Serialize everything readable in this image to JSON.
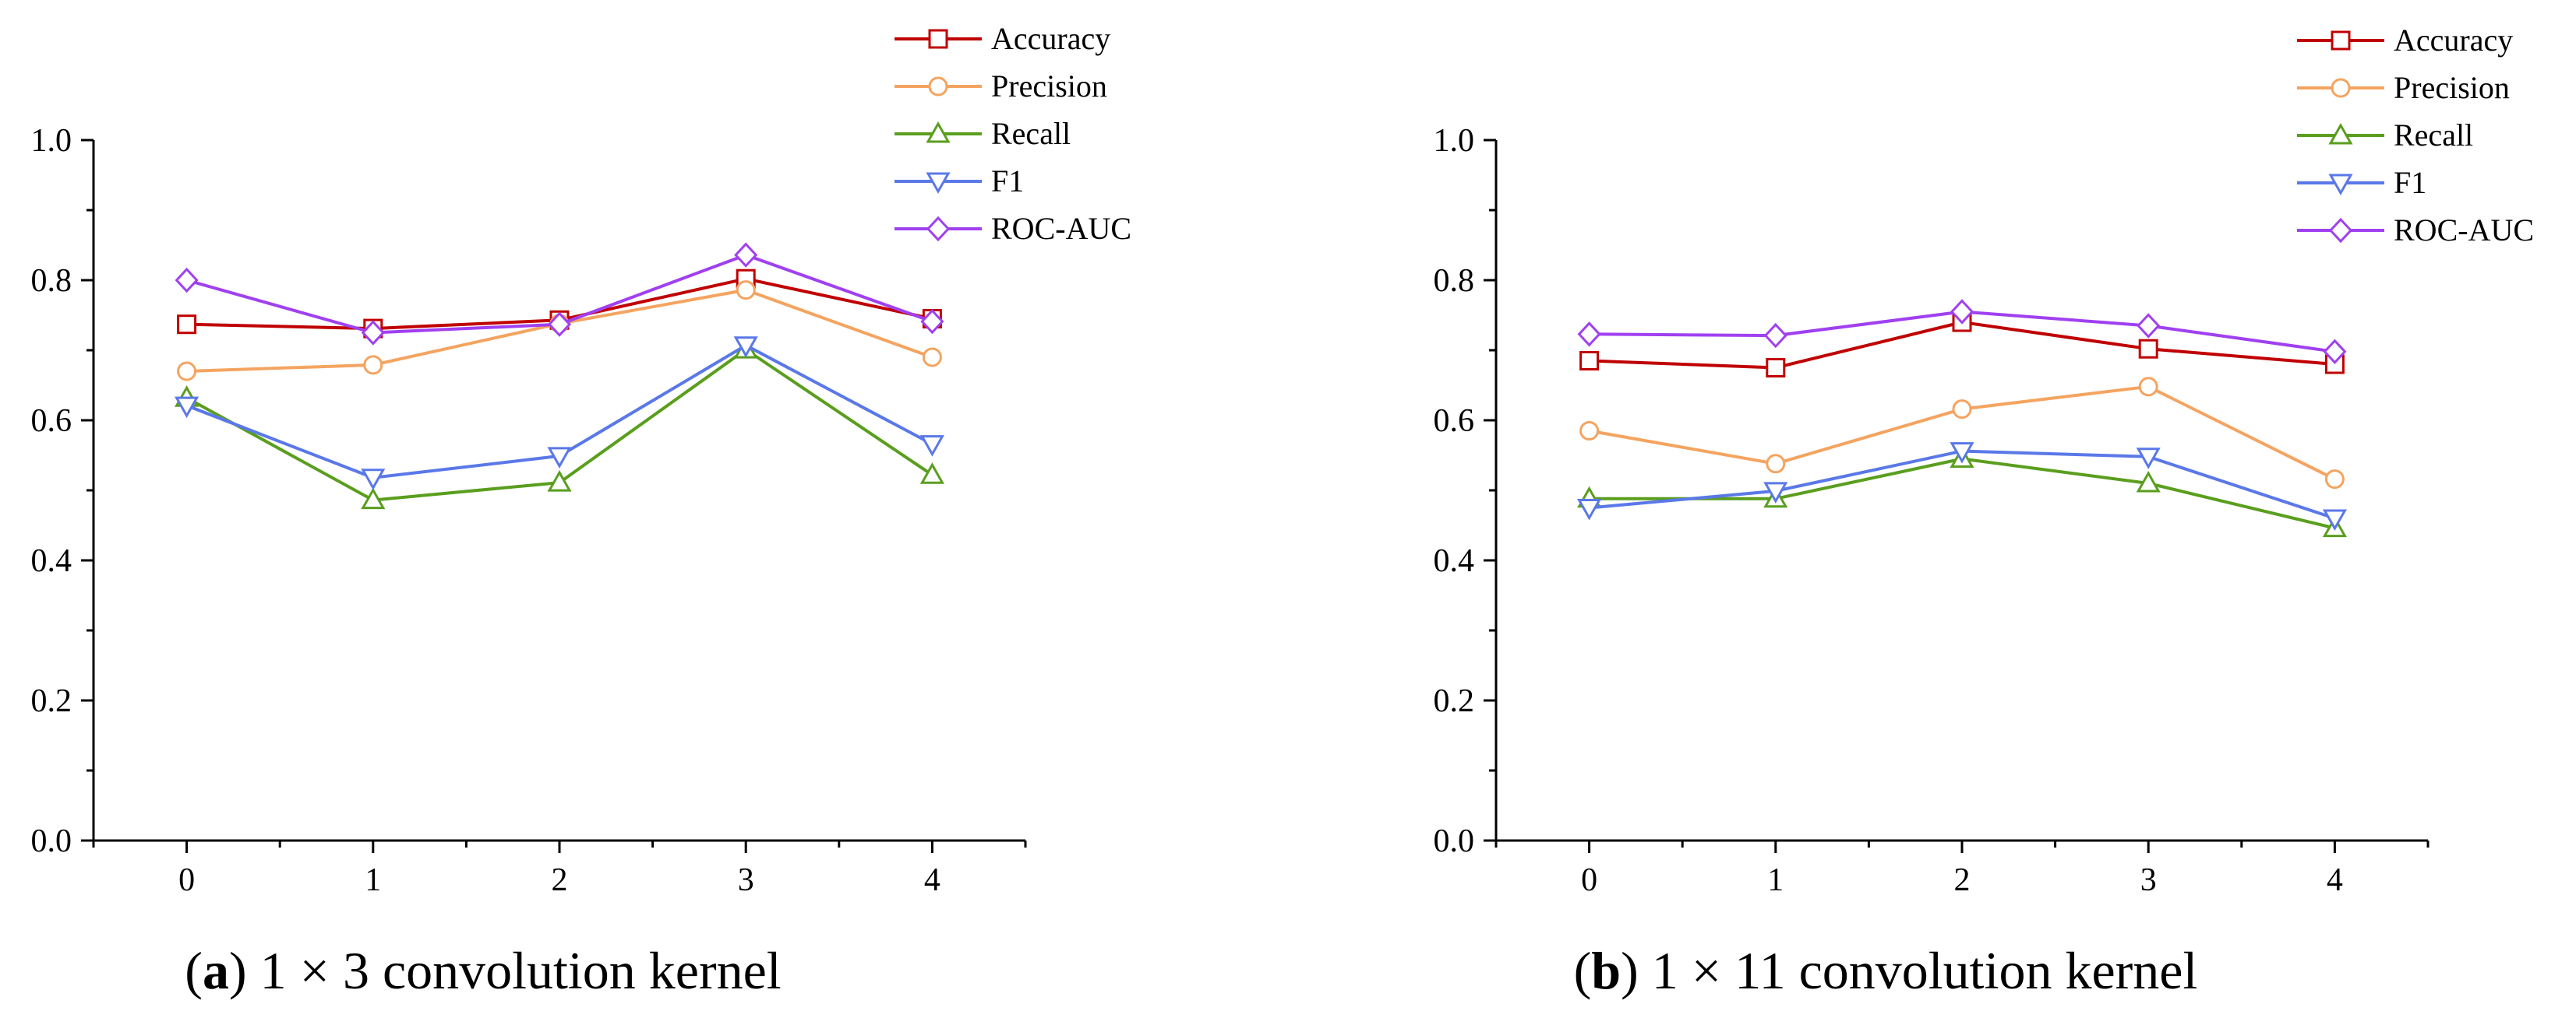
{
  "chart_data": [
    {
      "type": "line",
      "caption_letter": "a",
      "caption_text": "1 × 3 convolution kernel",
      "xlabel": "",
      "ylabel": "",
      "x": [
        0,
        1,
        2,
        3,
        4
      ],
      "x_tick_labels": [
        "0",
        "1",
        "2",
        "3",
        "4"
      ],
      "xlim": [
        -0.5,
        4.5
      ],
      "ylim": [
        0.0,
        1.0
      ],
      "y_tick_labels": [
        "0.0",
        "0.2",
        "0.4",
        "0.6",
        "0.8",
        "1.0"
      ],
      "y_ticks": [
        0.0,
        0.2,
        0.4,
        0.6,
        0.8,
        1.0
      ],
      "grid": false,
      "legend_position": "top-right",
      "series": [
        {
          "name": "Accuracy",
          "color": "#c00000",
          "marker": "square",
          "values": [
            0.737,
            0.731,
            0.743,
            0.802,
            0.745
          ]
        },
        {
          "name": "Precision",
          "color": "#f4a460",
          "marker": "circle",
          "values": [
            0.67,
            0.679,
            0.738,
            0.786,
            0.69
          ]
        },
        {
          "name": "Recall",
          "color": "#5a9e1e",
          "marker": "triangle-up",
          "values": [
            0.632,
            0.486,
            0.511,
            0.701,
            0.522
          ]
        },
        {
          "name": "F1",
          "color": "#5a78e8",
          "marker": "triangle-down",
          "values": [
            0.621,
            0.518,
            0.549,
            0.707,
            0.566
          ]
        },
        {
          "name": "ROC-AUC",
          "color": "#a040f0",
          "marker": "diamond",
          "values": [
            0.8,
            0.725,
            0.737,
            0.836,
            0.741
          ]
        }
      ]
    },
    {
      "type": "line",
      "caption_letter": "b",
      "caption_text": "1 × 11 convolution kernel",
      "xlabel": "",
      "ylabel": "",
      "x": [
        0,
        1,
        2,
        3,
        4
      ],
      "x_tick_labels": [
        "0",
        "1",
        "2",
        "3",
        "4"
      ],
      "xlim": [
        -0.5,
        4.5
      ],
      "ylim": [
        0.0,
        1.0
      ],
      "y_tick_labels": [
        "0.0",
        "0.2",
        "0.4",
        "0.6",
        "0.8",
        "1.0"
      ],
      "y_ticks": [
        0.0,
        0.2,
        0.4,
        0.6,
        0.8,
        1.0
      ],
      "grid": false,
      "legend_position": "top-right",
      "series": [
        {
          "name": "Accuracy",
          "color": "#c00000",
          "marker": "square",
          "values": [
            0.685,
            0.675,
            0.74,
            0.702,
            0.68
          ]
        },
        {
          "name": "Precision",
          "color": "#f4a460",
          "marker": "circle",
          "values": [
            0.585,
            0.538,
            0.616,
            0.648,
            0.516
          ]
        },
        {
          "name": "Recall",
          "color": "#5a9e1e",
          "marker": "triangle-up",
          "values": [
            0.488,
            0.488,
            0.545,
            0.51,
            0.446
          ]
        },
        {
          "name": "F1",
          "color": "#5a78e8",
          "marker": "triangle-down",
          "values": [
            0.475,
            0.499,
            0.556,
            0.548,
            0.46
          ]
        },
        {
          "name": "ROC-AUC",
          "color": "#a040f0",
          "marker": "diamond",
          "values": [
            0.723,
            0.721,
            0.755,
            0.735,
            0.698
          ]
        }
      ]
    }
  ]
}
